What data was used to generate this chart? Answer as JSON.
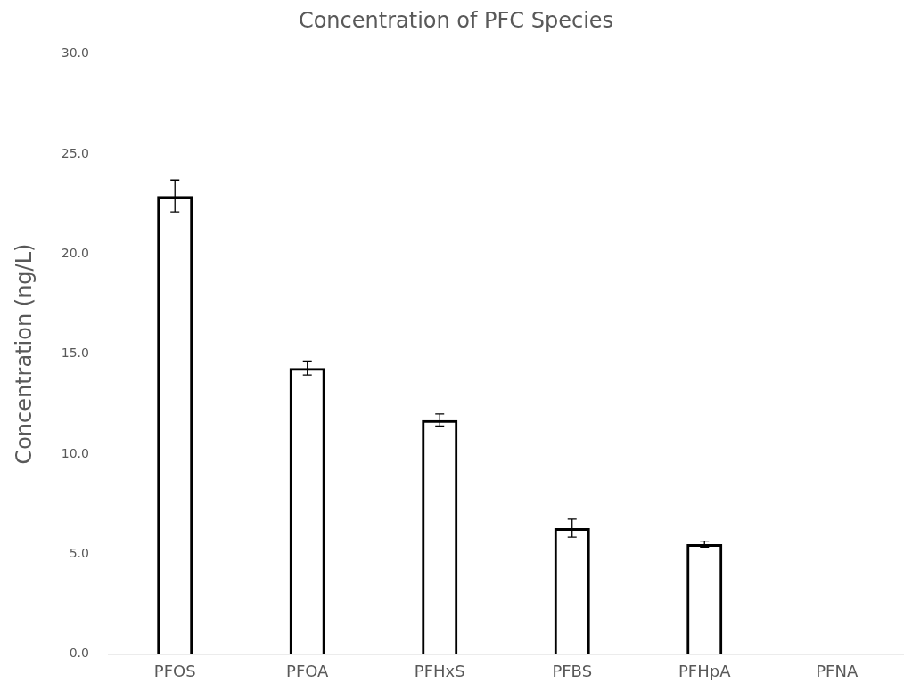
{
  "chart_data": {
    "type": "bar",
    "title": "Concentration of PFC Species",
    "ylabel": "Concentration (ng/L)",
    "categories": [
      "PFOS",
      "PFOA",
      "PFHxS",
      "PFBS",
      "PFHpA",
      "PFNA"
    ],
    "values": [
      22.9,
      14.3,
      11.7,
      6.3,
      5.5,
      null
    ],
    "errors": [
      0.8,
      0.35,
      0.3,
      0.45,
      0.15,
      null
    ],
    "color": "#000000",
    "ylim": [
      0,
      30
    ],
    "yticks": [
      {
        "value": 0,
        "label": "0.0"
      },
      {
        "value": 5,
        "label": "5.0"
      },
      {
        "value": 10,
        "label": "10.0"
      },
      {
        "value": 15,
        "label": "15.0"
      },
      {
        "value": 20,
        "label": "20.0"
      },
      {
        "value": 25,
        "label": "25.0"
      },
      {
        "value": 30,
        "label": "30.0"
      }
    ],
    "grid": false,
    "legend": false
  }
}
